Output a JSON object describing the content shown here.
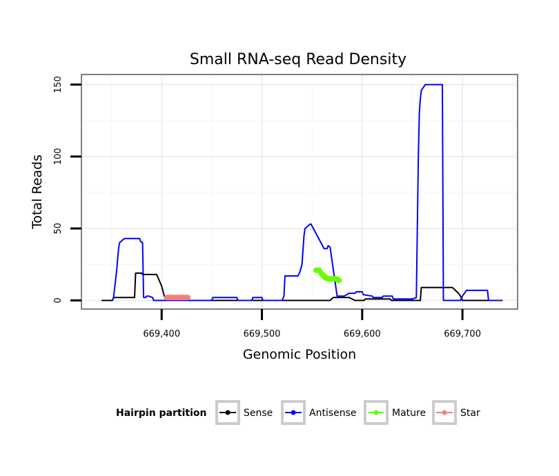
{
  "chart_data": {
    "type": "line",
    "title": "Small RNA-seq Read Density",
    "xlabel": "Genomic Position",
    "ylabel": "Total Reads",
    "xlim": [
      669320,
      669755
    ],
    "ylim": [
      -6,
      157
    ],
    "x_ticks": [
      669400,
      669500,
      669600,
      669700
    ],
    "x_tick_labels": [
      "669,400",
      "669,500",
      "669,600",
      "669,700"
    ],
    "y_ticks": [
      0,
      50,
      100,
      150
    ],
    "y_tick_labels": [
      "0",
      "50",
      "100",
      "150"
    ],
    "grid": true,
    "legend": {
      "title": "Hairpin partition",
      "placement": "bottom",
      "entries": [
        {
          "name": "Sense",
          "color": "#000000"
        },
        {
          "name": "Antisense",
          "color": "#0000ff"
        },
        {
          "name": "Mature",
          "color": "#66ff00"
        },
        {
          "name": "Star",
          "color": "#f08080"
        }
      ]
    },
    "series": [
      {
        "name": "Sense",
        "color": "#000000",
        "x": [
          669340,
          669351,
          669352,
          669373,
          669374,
          669380,
          669381,
          669395,
          669400,
          669403,
          669404,
          669560,
          669568,
          669571,
          669572,
          669587,
          669593,
          669602,
          669603,
          669628,
          669629,
          669650,
          669653,
          669658,
          669659,
          669675,
          669680,
          669690,
          669693,
          669696,
          669698,
          669700,
          669702,
          669740
        ],
        "y": [
          0,
          0,
          2,
          2,
          19,
          19,
          18,
          18,
          10,
          2,
          0,
          0,
          0,
          2,
          2,
          2,
          0,
          0,
          1,
          1,
          0,
          0,
          0,
          0,
          9,
          9,
          9,
          9,
          7,
          5,
          3,
          0,
          0,
          0
        ]
      },
      {
        "name": "Antisense",
        "color": "#0000ff",
        "x": [
          669351,
          669352,
          669355,
          669357,
          669358,
          669361,
          669363,
          669365,
          669378,
          669379,
          669381,
          669382,
          669384,
          669385,
          669387,
          669391,
          669392,
          669450,
          669451,
          669475,
          669476,
          669490,
          669491,
          669500,
          669501,
          669520,
          669522,
          669523,
          669536,
          669538,
          669540,
          669542,
          669543,
          669548,
          669549,
          669562,
          669563,
          669565,
          669566,
          669568,
          669575,
          669576,
          669580,
          669582,
          669587,
          669593,
          669594,
          669600,
          669601,
          669610,
          669611,
          669620,
          669621,
          669630,
          669631,
          669650,
          669654,
          669656,
          669657,
          669658,
          669659,
          669661,
          669663,
          669680,
          669681,
          669695,
          669698,
          669700,
          669702,
          669704,
          669706,
          669725,
          669726,
          669740
        ],
        "y": [
          0,
          2,
          20,
          36,
          40,
          42,
          43,
          43,
          43,
          41,
          40,
          2,
          2,
          3,
          3,
          2,
          0,
          0,
          2,
          2,
          0,
          0,
          2,
          2,
          0,
          0,
          3,
          17,
          17,
          20,
          25,
          45,
          50,
          53,
          53,
          36,
          36,
          36,
          38,
          37,
          3,
          3,
          3,
          3,
          5,
          5,
          6,
          6,
          4,
          3,
          2,
          2,
          3,
          3,
          1,
          1,
          2,
          100,
          130,
          140,
          146,
          148,
          150,
          150,
          0,
          0,
          0,
          3,
          5,
          7,
          7,
          7,
          0,
          0
        ]
      },
      {
        "name": "Mature",
        "color": "#66ff00",
        "x": [
          669554,
          669557,
          669558,
          669560,
          669562,
          669563,
          669566,
          669568,
          669575,
          669576,
          669577
        ],
        "y": [
          21,
          21,
          20,
          18,
          17,
          16,
          15,
          15,
          15,
          14,
          14
        ]
      },
      {
        "name": "Star",
        "color": "#f08080",
        "x": [
          669405,
          669426
        ],
        "y": [
          2,
          2
        ]
      }
    ]
  }
}
